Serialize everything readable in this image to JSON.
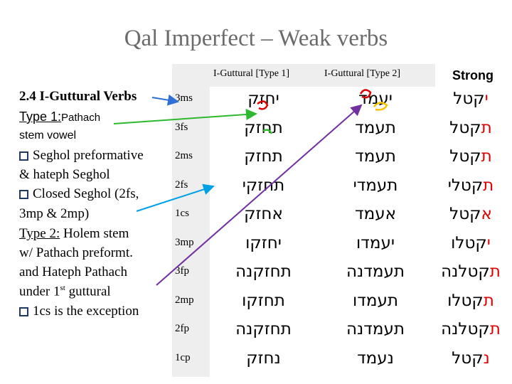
{
  "title": "Qal Imperfect – Weak verbs",
  "headers": {
    "col1": "I-Guttural [Type 1]",
    "col2": "I-Guttural [Type 2]",
    "col3": "Strong"
  },
  "left_panel": {
    "heading": "2.4 I-Guttural Verbs",
    "type1_label": "Type 1:",
    "type1_rest": "Pathach",
    "type1_line2": "stem vowel",
    "bullet1_line1": "Seghol preformative",
    "bullet1_line2": "& hateph Seghol",
    "bullet2_line1": "Closed Seghol (2fs,",
    "bullet2_line2": "3mp & 2mp)",
    "type2_label": "Type 2:",
    "type2_rest": " Holem stem",
    "type2_line2": "w/ Pathach preformt.",
    "type2_line3": "and Hateph Pathach",
    "type2_line4_pre": "under 1",
    "type2_line4_sup": "st",
    "type2_line4_post": " guttural",
    "bullet3": "1cs is the exception"
  },
  "rows": [
    {
      "person": "3ms",
      "type1": "יחזק",
      "type2": "יעמד",
      "strong_pre": "י",
      "strong_rest": "קטל"
    },
    {
      "person": "3fs",
      "type1": "תחזק",
      "type2": "תעמד",
      "strong_pre": "ת",
      "strong_rest": "קטל"
    },
    {
      "person": "2ms",
      "type1": "תחזק",
      "type2": "תעמד",
      "strong_pre": "ת",
      "strong_rest": "קטל"
    },
    {
      "person": "2fs",
      "type1": "תחזקי",
      "type2": "תעמדי",
      "strong_pre": "ת",
      "strong_rest": "קטלי"
    },
    {
      "person": "1cs",
      "type1": "אחזק",
      "type2": "אעמד",
      "strong_pre": "א",
      "strong_rest": "קטל"
    },
    {
      "person": "3mp",
      "type1": "יחזקו",
      "type2": "יעמדו",
      "strong_pre": "י",
      "strong_rest": "קטלו"
    },
    {
      "person": "3fp",
      "type1": "תחזקנה",
      "type2": "תעמדנה",
      "strong_pre": "ת",
      "strong_rest": "קטלנה"
    },
    {
      "person": "2mp",
      "type1": "תחזקו",
      "type2": "תעמדו",
      "strong_pre": "ת",
      "strong_rest": "קטלו"
    },
    {
      "person": "2fp",
      "type1": "תחזקנה",
      "type2": "תעמדנה",
      "strong_pre": "ת",
      "strong_rest": "קטלנה"
    },
    {
      "person": "1cp",
      "type1": "נחזק",
      "type2": "נעמד",
      "strong_pre": "נ",
      "strong_rest": "קטל"
    }
  ],
  "colors": {
    "title": "#6b6b6b",
    "strong_preformative": "#e00000",
    "arrow_green": "#2db82d",
    "arrow_blue": "#00a0e6",
    "arrow_purple": "#7030a0",
    "mark_red": "#e00000",
    "mark_yellow": "#f5c400"
  }
}
